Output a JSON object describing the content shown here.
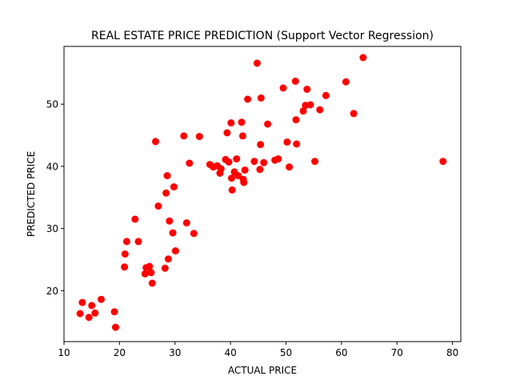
{
  "chart_data": {
    "type": "scatter",
    "title": "REAL ESTATE PRICE PREDICTION (Support Vector Regression)",
    "xlabel": "ACTUAL PRICE",
    "ylabel": "PREDICTED PRICE",
    "xlim": [
      10.0,
      81.5
    ],
    "ylim": [
      11.8,
      59.3
    ],
    "xticks": [
      10,
      20,
      30,
      40,
      50,
      60,
      70,
      80
    ],
    "yticks": [
      20,
      30,
      40,
      50
    ],
    "grid": false,
    "legend": "none",
    "marker_color": "#ff0000",
    "points": [
      {
        "x": 12.9,
        "y": 16.3
      },
      {
        "x": 13.3,
        "y": 18.1
      },
      {
        "x": 14.5,
        "y": 15.7
      },
      {
        "x": 15.0,
        "y": 17.6
      },
      {
        "x": 15.6,
        "y": 16.4
      },
      {
        "x": 16.7,
        "y": 18.6
      },
      {
        "x": 19.1,
        "y": 16.6
      },
      {
        "x": 19.3,
        "y": 14.1
      },
      {
        "x": 20.9,
        "y": 23.8
      },
      {
        "x": 21.0,
        "y": 25.9
      },
      {
        "x": 21.3,
        "y": 27.9
      },
      {
        "x": 22.8,
        "y": 31.5
      },
      {
        "x": 23.4,
        "y": 27.9
      },
      {
        "x": 24.6,
        "y": 22.7
      },
      {
        "x": 24.8,
        "y": 23.7
      },
      {
        "x": 25.4,
        "y": 23.9
      },
      {
        "x": 25.7,
        "y": 22.9
      },
      {
        "x": 25.9,
        "y": 21.2
      },
      {
        "x": 26.5,
        "y": 44.0
      },
      {
        "x": 27.0,
        "y": 33.6
      },
      {
        "x": 28.2,
        "y": 23.6
      },
      {
        "x": 28.4,
        "y": 35.7
      },
      {
        "x": 28.6,
        "y": 38.5
      },
      {
        "x": 28.8,
        "y": 25.1
      },
      {
        "x": 29.0,
        "y": 31.2
      },
      {
        "x": 29.6,
        "y": 29.3
      },
      {
        "x": 29.8,
        "y": 36.7
      },
      {
        "x": 30.1,
        "y": 26.4
      },
      {
        "x": 31.6,
        "y": 44.9
      },
      {
        "x": 32.1,
        "y": 30.9
      },
      {
        "x": 32.6,
        "y": 40.5
      },
      {
        "x": 33.4,
        "y": 29.2
      },
      {
        "x": 34.4,
        "y": 44.8
      },
      {
        "x": 36.3,
        "y": 40.3
      },
      {
        "x": 36.9,
        "y": 39.9
      },
      {
        "x": 37.6,
        "y": 40.1
      },
      {
        "x": 38.1,
        "y": 38.9
      },
      {
        "x": 38.3,
        "y": 39.6
      },
      {
        "x": 39.1,
        "y": 41.1
      },
      {
        "x": 39.4,
        "y": 45.4
      },
      {
        "x": 39.7,
        "y": 40.7
      },
      {
        "x": 40.1,
        "y": 47.0
      },
      {
        "x": 40.2,
        "y": 38.1
      },
      {
        "x": 40.3,
        "y": 36.2
      },
      {
        "x": 40.7,
        "y": 39.1
      },
      {
        "x": 41.1,
        "y": 41.2
      },
      {
        "x": 41.4,
        "y": 38.5
      },
      {
        "x": 42.0,
        "y": 47.1
      },
      {
        "x": 42.2,
        "y": 44.9
      },
      {
        "x": 42.3,
        "y": 37.9
      },
      {
        "x": 42.4,
        "y": 37.4
      },
      {
        "x": 42.6,
        "y": 39.4
      },
      {
        "x": 43.1,
        "y": 50.8
      },
      {
        "x": 44.3,
        "y": 40.8
      },
      {
        "x": 44.8,
        "y": 56.6
      },
      {
        "x": 45.3,
        "y": 39.5
      },
      {
        "x": 45.4,
        "y": 43.5
      },
      {
        "x": 45.5,
        "y": 51.0
      },
      {
        "x": 46.0,
        "y": 40.6
      },
      {
        "x": 46.7,
        "y": 46.8
      },
      {
        "x": 48.0,
        "y": 41.0
      },
      {
        "x": 48.6,
        "y": 41.2
      },
      {
        "x": 49.5,
        "y": 52.6
      },
      {
        "x": 50.2,
        "y": 43.9
      },
      {
        "x": 50.6,
        "y": 39.9
      },
      {
        "x": 51.7,
        "y": 53.7
      },
      {
        "x": 51.8,
        "y": 47.5
      },
      {
        "x": 51.9,
        "y": 43.6
      },
      {
        "x": 53.1,
        "y": 48.9
      },
      {
        "x": 53.5,
        "y": 49.8
      },
      {
        "x": 53.8,
        "y": 52.4
      },
      {
        "x": 54.4,
        "y": 49.9
      },
      {
        "x": 55.2,
        "y": 40.8
      },
      {
        "x": 56.1,
        "y": 49.1
      },
      {
        "x": 57.2,
        "y": 51.4
      },
      {
        "x": 60.8,
        "y": 53.6
      },
      {
        "x": 62.2,
        "y": 48.5
      },
      {
        "x": 63.9,
        "y": 57.5
      },
      {
        "x": 78.3,
        "y": 40.8
      }
    ]
  }
}
